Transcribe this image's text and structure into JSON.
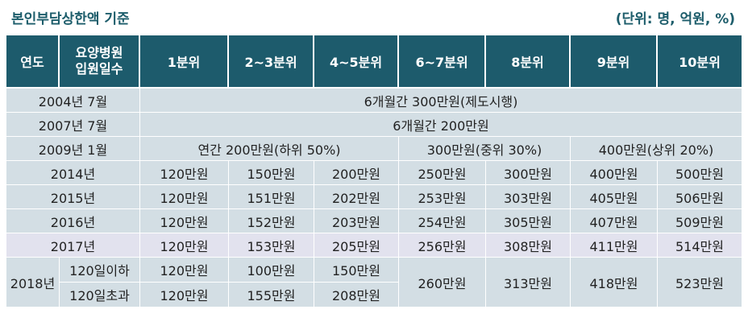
{
  "title": "본인부담상한액 기준",
  "unit": "(단위: 명, 억원, %)",
  "headers": [
    "연도",
    "요양병원",
    "입원일수",
    "1분위",
    "2~3분위",
    "4~5분위",
    "6~7분위",
    "8분위",
    "9분위",
    "10분위"
  ],
  "rows": {
    "r2004": {
      "year": "2004년 7월",
      "value": "6개월간 300만원(제도시행)"
    },
    "r2007": {
      "year": "2007년 7월",
      "value": "6개월간 200만원"
    },
    "r2009": {
      "year": "2009년 1월",
      "low": "연간 200만원(하위 50%)",
      "mid": "300만원(중위 30%)",
      "high": "400만원(상위 20%)"
    },
    "r2014": {
      "year": "2014년",
      "cells": [
        "120만원",
        "150만원",
        "200만원",
        "250만원",
        "300만원",
        "400만원",
        "500만원"
      ]
    },
    "r2015": {
      "year": "2015년",
      "cells": [
        "120만원",
        "151만원",
        "202만원",
        "253만원",
        "303만원",
        "405만원",
        "506만원"
      ]
    },
    "r2016": {
      "year": "2016년",
      "cells": [
        "120만원",
        "152만원",
        "203만원",
        "254만원",
        "305만원",
        "407만원",
        "509만원"
      ]
    },
    "r2017": {
      "year": "2017년",
      "cells": [
        "120만원",
        "153만원",
        "205만원",
        "256만원",
        "308만원",
        "411만원",
        "514만원"
      ]
    },
    "r2018": {
      "year": "2018년",
      "sub1": {
        "label": "120일이하",
        "cells": [
          "120만원",
          "100만원",
          "150만원"
        ]
      },
      "sub2": {
        "label": "120일초과",
        "cells": [
          "120만원",
          "155만원",
          "208만원"
        ]
      },
      "shared": [
        "260만원",
        "313만원",
        "418만원",
        "523만원"
      ]
    }
  }
}
